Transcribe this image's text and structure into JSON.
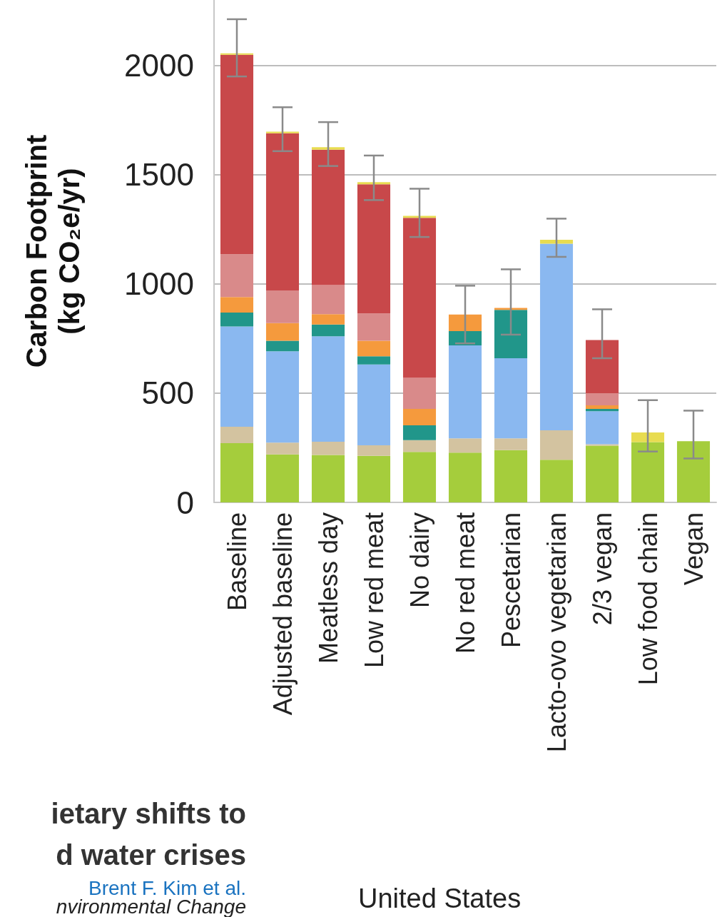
{
  "chart_data": {
    "type": "bar",
    "stacked": true,
    "ylabel": "Carbon Footprint\n(kg CO₂e/yr)",
    "categories": [
      "Baseline",
      "Adjusted baseline",
      "Meatless day",
      "Low red meat",
      "No dairy",
      "No red meat",
      "Pescetarian",
      "Lacto-ovo vegetarian",
      "2/3 vegan",
      "Low food chain",
      "Vegan"
    ],
    "series": [
      {
        "color": "#a5cd3c",
        "values": [
          271,
          220,
          217,
          213,
          231,
          228,
          239,
          195,
          260,
          276,
          280
        ]
      },
      {
        "color": "#d3c3a0",
        "values": [
          75,
          54,
          61,
          48,
          54,
          65,
          54,
          135,
          6,
          0,
          0
        ]
      },
      {
        "color": "#8ab8f0",
        "values": [
          459,
          418,
          482,
          370,
          0,
          426,
          367,
          854,
          151,
          0,
          0
        ]
      },
      {
        "color": "#21968a",
        "values": [
          64,
          48,
          54,
          38,
          68,
          65,
          221,
          0,
          11,
          0,
          0
        ]
      },
      {
        "color": "#f59a3d",
        "values": [
          71,
          81,
          48,
          71,
          75,
          76,
          9,
          0,
          16,
          0,
          0
        ]
      },
      {
        "color": "#d98a8a",
        "values": [
          196,
          149,
          133,
          125,
          142,
          0,
          0,
          0,
          56,
          0,
          0
        ]
      },
      {
        "color": "#c8484a",
        "values": [
          913,
          720,
          620,
          591,
          733,
          0,
          0,
          0,
          243,
          0,
          0
        ]
      },
      {
        "color": "#e8dc50",
        "values": [
          7,
          7,
          11,
          10,
          9,
          0,
          0,
          18,
          0,
          44,
          0
        ],
        "errors": [
          [
            1950,
            2212
          ],
          [
            1608,
            1809
          ],
          [
            1540,
            1741
          ],
          [
            1384,
            1588
          ],
          [
            1215,
            1436
          ],
          [
            728,
            992
          ],
          [
            768,
            1067
          ],
          [
            1124,
            1299
          ],
          [
            660,
            884
          ],
          [
            233,
            468
          ],
          [
            201,
            420
          ]
        ]
      }
    ],
    "ylim": [
      0,
      2300
    ],
    "yticks": [
      0,
      500,
      1000,
      1500,
      2000
    ],
    "grid": "y",
    "annotations": [
      "ietary shifts to",
      "d water crises",
      "Brent F. Kim et al.",
      "nvironmental Change",
      "United States"
    ]
  }
}
